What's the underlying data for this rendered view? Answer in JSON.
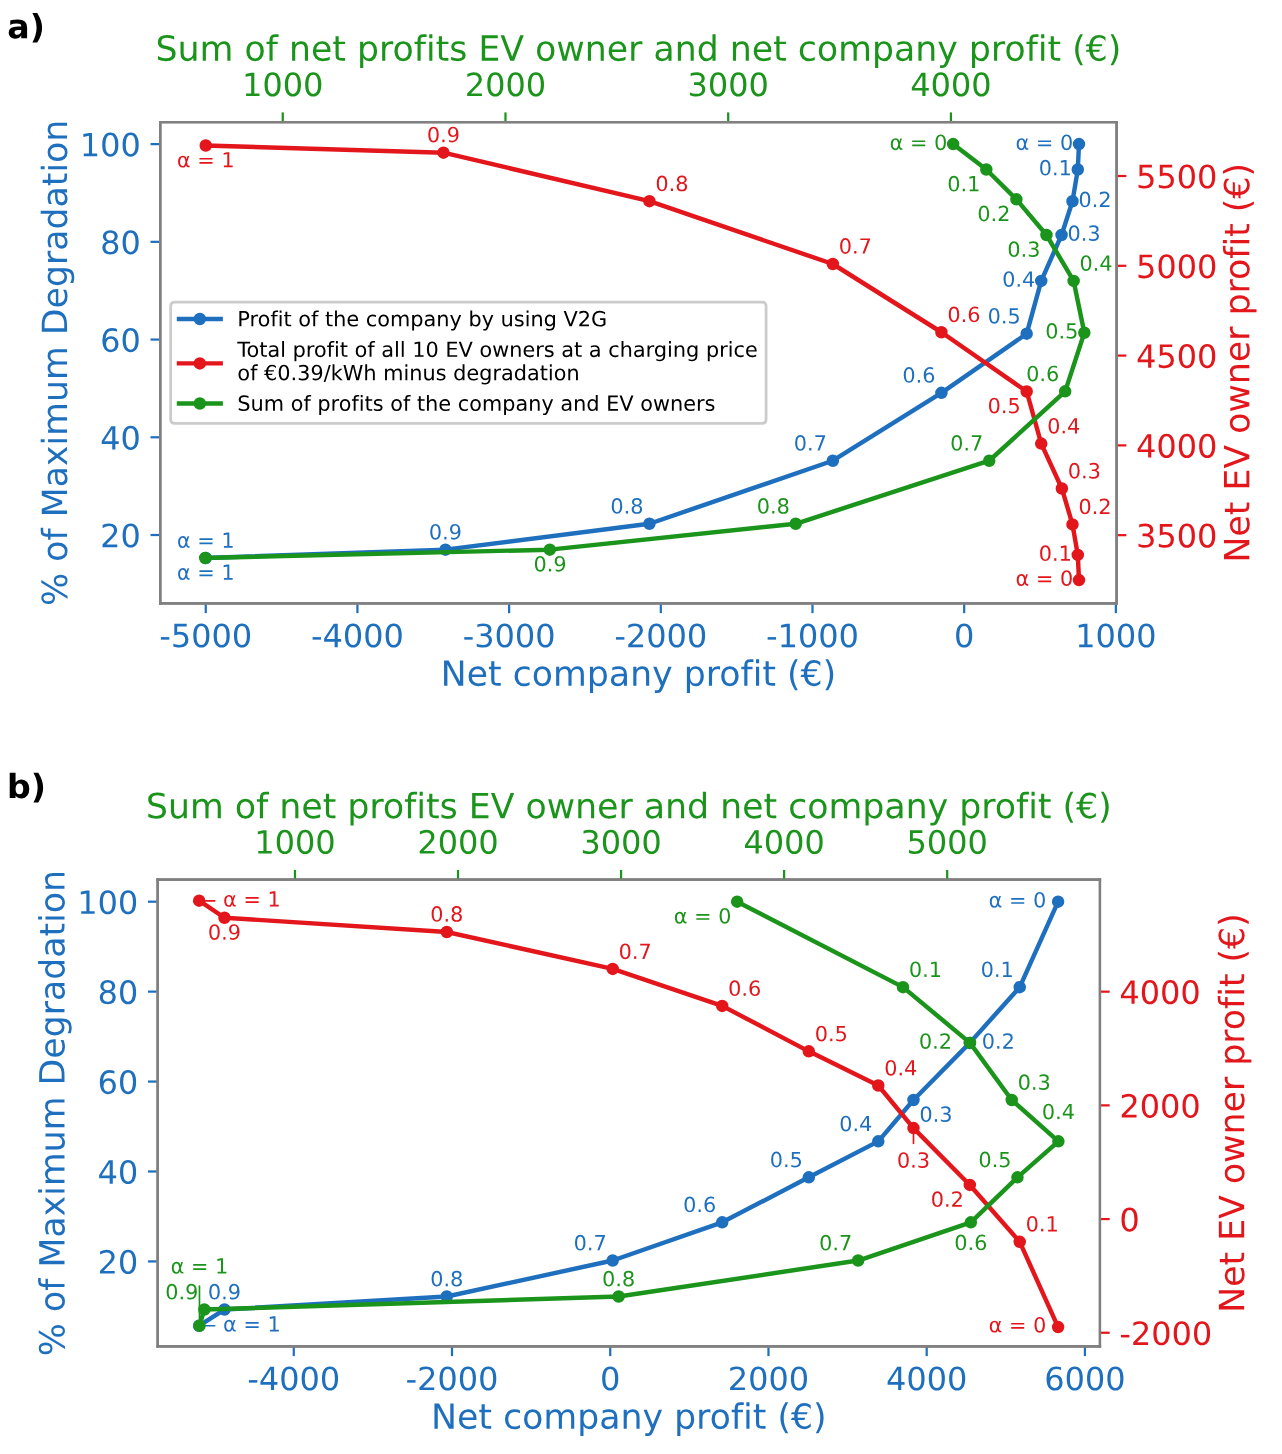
{
  "chart_data": [
    {
      "type": "line",
      "xlabel": "Net company profit (€)",
      "ylabel": "% of Maximum Degradation",
      "y2label": "Net EV owner profit (€)",
      "x2label": "Sum of net profits EV owner and net company profit (€)",
      "marker": "circle",
      "legend": "left",
      "xlim": [
        -5300,
        1005
      ],
      "xticks": [
        -5000,
        -4000,
        -3000,
        -2000,
        -1000,
        0,
        1000
      ],
      "ylim": [
        6,
        104.5
      ],
      "yticks": [
        20,
        40,
        60,
        80,
        100
      ],
      "y2lim": [
        3120,
        5800
      ],
      "y2ticks": [
        3500,
        4000,
        4500,
        5000,
        5500
      ],
      "x2lim": [
        450,
        4744
      ],
      "x2ticks": [
        1000,
        2000,
        3000,
        4000
      ],
      "annotations": [
        "a)",
        {
          "text": "α = 1",
          "x": -5000,
          "y": 15.3
        },
        {
          "text": "0.9",
          "x": -3420,
          "y": 17.0
        },
        {
          "text": "0.8",
          "x": -2075,
          "y": 22.3
        },
        {
          "text": "0.7",
          "x": -866,
          "y": 35.2
        },
        {
          "text": "0.6",
          "x": -150,
          "y": 49.1
        },
        {
          "text": "0.5",
          "x": 412,
          "y": 61.2
        },
        {
          "text": "0.4",
          "x": 508,
          "y": 72.0
        },
        {
          "text": "0.3",
          "x": 642,
          "y": 81.4
        },
        {
          "text": "0.2",
          "x": 714,
          "y": 88.3
        },
        {
          "text": "0.1",
          "x": 749,
          "y": 94.8
        },
        {
          "text": "α = 0",
          "x": 757,
          "y": 100
        },
        {
          "text": "α = 1",
          "x": -5000,
          "y": 99.7
        },
        {
          "text": "0.9",
          "x": -3433,
          "y": 98.3
        },
        {
          "text": "0.8",
          "x": -2075,
          "y": 88.3
        },
        {
          "text": "0.7",
          "x": -866,
          "y": 75.5
        },
        {
          "text": "0.6",
          "x": -150,
          "y": 61.5
        },
        {
          "text": "0.5",
          "x": 412,
          "y": 49.4
        },
        {
          "text": "0.4",
          "x": 508,
          "y": 38.7
        },
        {
          "text": "0.3",
          "x": 644,
          "y": 29.5
        },
        {
          "text": "0.2",
          "x": 714,
          "y": 22.2
        },
        {
          "text": "0.1",
          "x": 749,
          "y": 15.9
        },
        {
          "text": "α = 0",
          "x": 757,
          "y": 10.8
        },
        {
          "text": "α = 1",
          "x": -5000,
          "y": 15.3
        },
        {
          "text": "0.9",
          "x": -2730,
          "y": 17.0
        },
        {
          "text": "0.8",
          "x": -1110,
          "y": 22.3
        },
        {
          "text": "0.7",
          "x": 165,
          "y": 35.2
        },
        {
          "text": "0.6",
          "x": 666,
          "y": 49.4
        },
        {
          "text": "0.5",
          "x": 792,
          "y": 61.4
        },
        {
          "text": "0.4",
          "x": 721,
          "y": 72.0
        },
        {
          "text": "0.3",
          "x": 542,
          "y": 81.4
        },
        {
          "text": "0.2",
          "x": 344,
          "y": 88.7
        },
        {
          "text": "0.1",
          "x": 146,
          "y": 94.8
        },
        {
          "text": "α = 0",
          "x": -73,
          "y": 100
        }
      ],
      "series": [
        {
          "name": "Profit of the company by using V2G",
          "color": "#1f6fbf",
          "x": [
            -5000,
            -3420,
            -2075,
            -866,
            -150,
            412,
            508,
            642,
            714,
            749,
            757
          ],
          "values": [
            15.3,
            17.0,
            22.3,
            35.2,
            49.1,
            61.2,
            72.0,
            81.4,
            88.3,
            94.8,
            100
          ]
        },
        {
          "name": "Total profit of all 10 EV owners at a charging price\nof €0.39/kWh minus degradation",
          "color": "#e3161c",
          "axis": "y2",
          "x": [
            -5000,
            -3433,
            -2075,
            -866,
            -150,
            412,
            508,
            644,
            714,
            749,
            757
          ],
          "values": [
            5670,
            5630,
            5360,
            5010,
            4630,
            4300,
            4010,
            3760,
            3560,
            3390,
            3250
          ]
        },
        {
          "name": "Sum of profits of the company and EV owners",
          "color": "#1b941b",
          "axis": "x2",
          "x": [
            652,
            2199,
            3303,
            4172,
            4513,
            4599,
            4551,
            4429,
            4294,
            4159,
            4010
          ],
          "values": [
            15.3,
            17.0,
            22.3,
            35.2,
            49.4,
            61.4,
            72.0,
            81.4,
            88.7,
            94.8,
            100
          ]
        }
      ]
    },
    {
      "type": "line",
      "xlabel": "Net company profit (€)",
      "ylabel": "% of Maximum Degradation",
      "y2label": "Net EV owner profit (€)",
      "x2label": "Sum of net profits EV owner and net company profit (€)",
      "marker": "circle",
      "xlim": [
        -5720,
        6190
      ],
      "xticks": [
        -4000,
        -2000,
        0,
        2000,
        4000,
        6000
      ],
      "ylim": [
        1.1,
        104.9
      ],
      "yticks": [
        20,
        40,
        60,
        80,
        100
      ],
      "y2lim": [
        -2240,
        5970
      ],
      "y2ticks": [
        -2000,
        0,
        2000,
        4000
      ],
      "x2lim": [
        158,
        5937
      ],
      "x2ticks": [
        1000,
        2000,
        3000,
        4000,
        5000
      ],
      "annotations": [
        "b)",
        {
          "text": "α = 1",
          "x": -5196,
          "y": 5.7
        },
        {
          "text": "0.9",
          "x": -4876,
          "y": 9.3
        },
        {
          "text": "0.8",
          "x": -2066,
          "y": 12.2
        },
        {
          "text": "0.7",
          "x": 31,
          "y": 20.2
        },
        {
          "text": "0.6",
          "x": 1415,
          "y": 28.7
        },
        {
          "text": "0.5",
          "x": 2510,
          "y": 38.7
        },
        {
          "text": "0.4",
          "x": 3388,
          "y": 46.7
        },
        {
          "text": "0.3",
          "x": 3833,
          "y": 55.9
        },
        {
          "text": "0.2",
          "x": 4545,
          "y": 68.6
        },
        {
          "text": "0.1",
          "x": 5176,
          "y": 81.0
        },
        {
          "text": "α = 0",
          "x": 5661,
          "y": 100
        },
        {
          "text": "α = 1",
          "x": -5196,
          "y": 100.2
        },
        {
          "text": "0.9",
          "x": -4876,
          "y": 96.4
        },
        {
          "text": "0.8",
          "x": -2066,
          "y": 93.3
        },
        {
          "text": "0.7",
          "x": 31,
          "y": 85.0
        },
        {
          "text": "0.6",
          "x": 1415,
          "y": 76.8
        },
        {
          "text": "0.5",
          "x": 2510,
          "y": 66.7
        },
        {
          "text": "0.4",
          "x": 3388,
          "y": 59.1
        },
        {
          "text": "0.3",
          "x": 3833,
          "y": 49.7
        },
        {
          "text": "0.2",
          "x": 4545,
          "y": 37.0
        },
        {
          "text": "0.1",
          "x": 5176,
          "y": 24.4
        },
        {
          "text": "α = 0",
          "x": 5661,
          "y": 5.5
        },
        {
          "text": "α = 1",
          "x": -5192,
          "y": 5.7
        },
        {
          "text": "0.9",
          "x": -5131,
          "y": 9.3
        },
        {
          "text": "0.8",
          "x": 106,
          "y": 12.2
        },
        {
          "text": "0.7",
          "x": 3134,
          "y": 20.2
        },
        {
          "text": "0.6",
          "x": 4558,
          "y": 28.7
        },
        {
          "text": "0.5",
          "x": 5147,
          "y": 38.7
        },
        {
          "text": "0.4",
          "x": 5665,
          "y": 46.7
        },
        {
          "text": "0.3",
          "x": 5075,
          "y": 55.9
        },
        {
          "text": "0.2",
          "x": 4547,
          "y": 68.6
        },
        {
          "text": "0.1",
          "x": 3700,
          "y": 81.0
        },
        {
          "text": "α = 0",
          "x": 1605,
          "y": 100
        }
      ],
      "series": [
        {
          "color": "#1f6fbf",
          "x": [
            -5196,
            -4876,
            -2066,
            31,
            1415,
            2510,
            3388,
            3833,
            4545,
            5176,
            5661
          ],
          "values": [
            5.7,
            9.3,
            12.2,
            20.2,
            28.7,
            38.7,
            46.7,
            55.9,
            68.6,
            81.0,
            100
          ]
        },
        {
          "color": "#e3161c",
          "axis": "y2",
          "x": [
            -5196,
            -4876,
            -2066,
            31,
            1415,
            2510,
            3388,
            3833,
            4545,
            5176,
            5661
          ],
          "values": [
            5600,
            5300,
            5050,
            4400,
            3750,
            2950,
            2350,
            1600,
            600,
            -400,
            -1900
          ]
        },
        {
          "color": "#1b941b",
          "axis": "x2",
          "x": [
            414,
            444,
            2985,
            4454,
            5145,
            5431,
            5682,
            5396,
            5140,
            4729,
            3712
          ],
          "values": [
            5.7,
            9.3,
            12.2,
            20.2,
            28.7,
            38.7,
            46.7,
            55.9,
            68.6,
            81.0,
            100
          ]
        }
      ]
    }
  ]
}
